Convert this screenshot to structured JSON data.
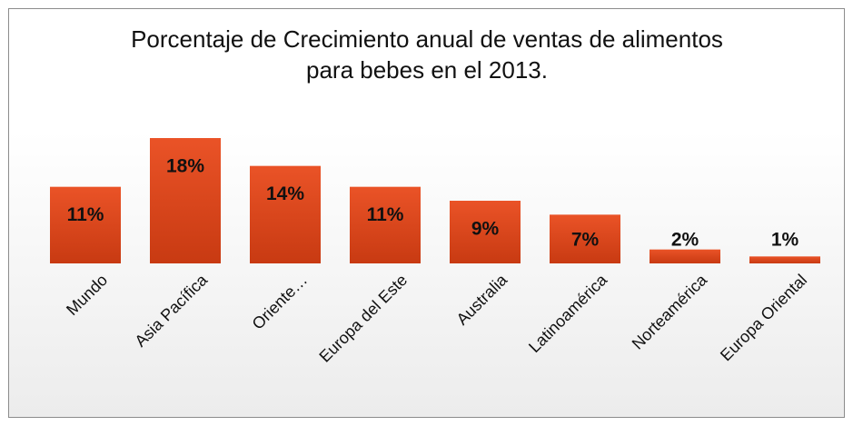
{
  "chart_data": {
    "type": "bar",
    "title": "Porcentaje de Crecimiento anual de ventas de alimentos para bebes en el 2013.",
    "categories": [
      "Mundo",
      "Asia Pacífica",
      "Oriente…",
      "Europa del Este",
      "Australia",
      "Latinoamérica",
      "Norteamérica",
      "Europa Oriental"
    ],
    "values": [
      11,
      18,
      14,
      11,
      9,
      7,
      2,
      1
    ],
    "value_labels": [
      "11%",
      "18%",
      "14%",
      "11%",
      "9%",
      "7%",
      "2%",
      "1%"
    ],
    "color": "#e24a1f"
  }
}
